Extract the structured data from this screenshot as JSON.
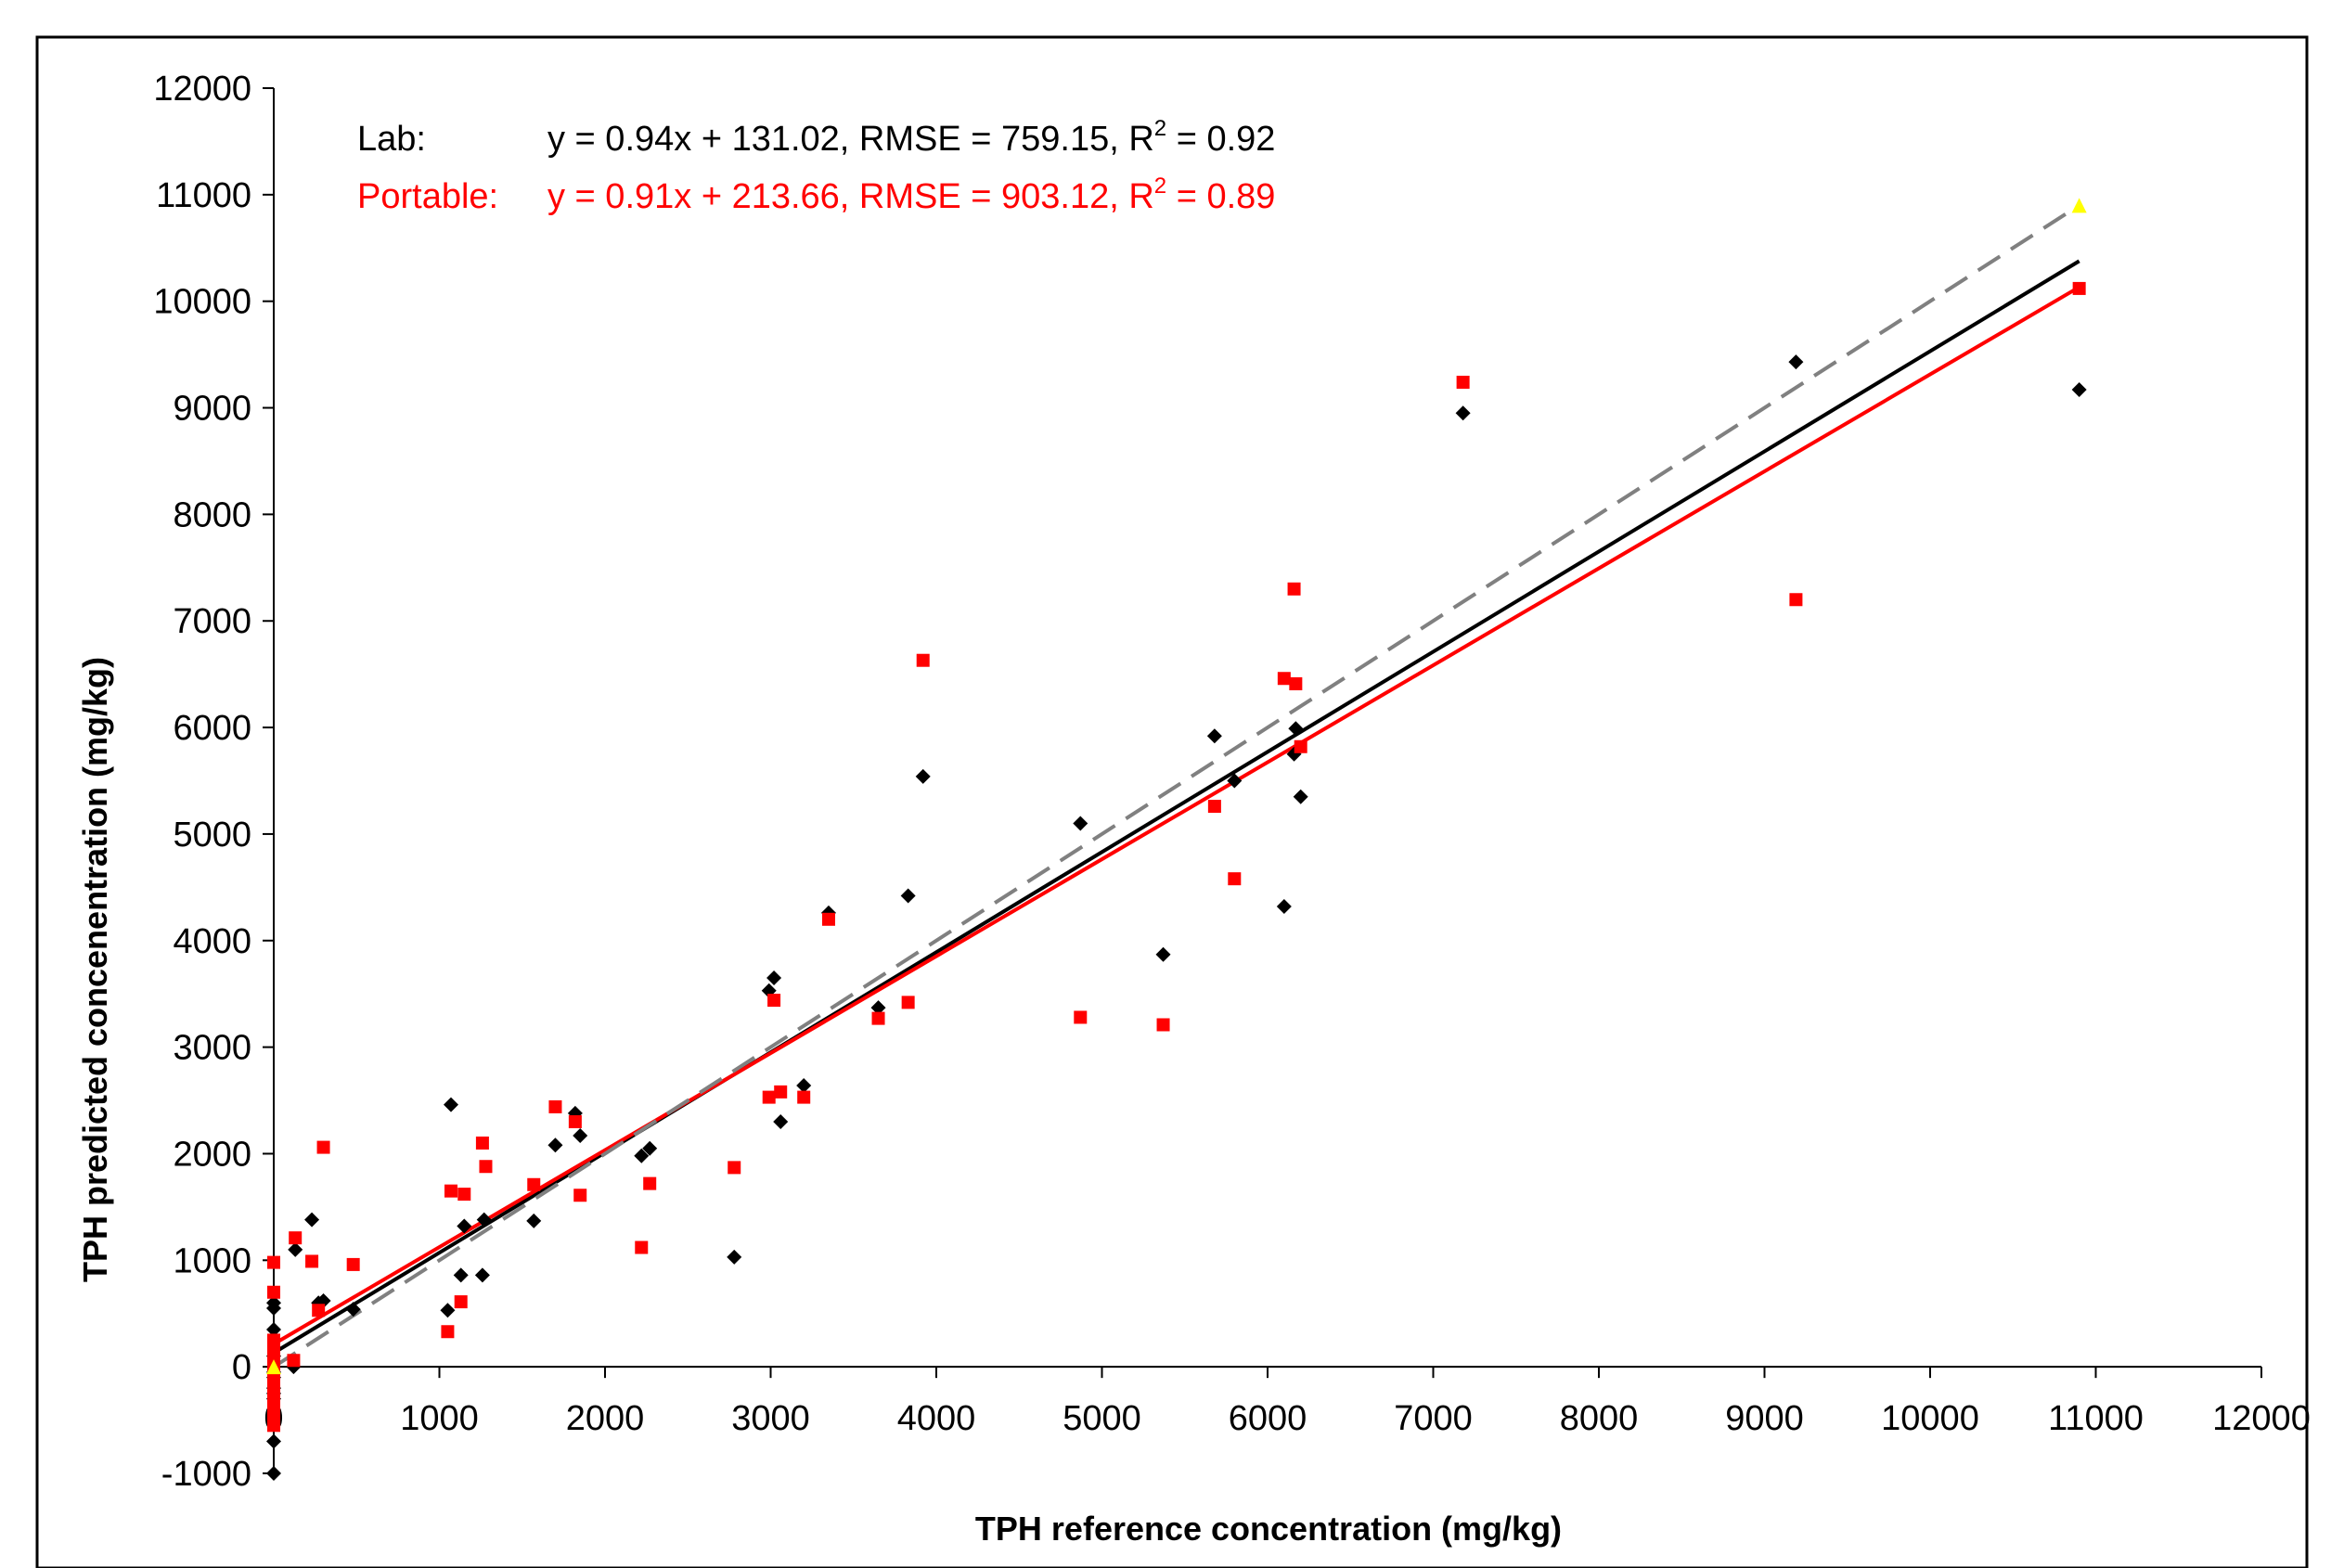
{
  "chart_data": {
    "type": "scatter",
    "title": "",
    "xlabel": "TPH reference concentration (mg/kg)",
    "ylabel": "TPH predicted concenentration (mg/kg)",
    "xlim": [
      0,
      12000
    ],
    "ylim": [
      -1000,
      12000
    ],
    "x_ticks": [
      "0",
      "1000",
      "2000",
      "3000",
      "4000",
      "5000",
      "6000",
      "7000",
      "8000",
      "9000",
      "10000",
      "11000",
      "12000"
    ],
    "y_ticks": [
      "-1000",
      "0",
      "1000",
      "2000",
      "3000",
      "4000",
      "5000",
      "6000",
      "7000",
      "8000",
      "9000",
      "10000",
      "11000",
      "12000"
    ],
    "grid": false,
    "annotations": {
      "lab_label": "Lab:",
      "lab_eq_main": "y = 0.94x + 131.02, RMSE = 759.15, R",
      "lab_eq_sup": "2",
      "lab_eq_tail": " = 0.92",
      "portable_label": "Portable:",
      "portable_eq_main": "y = 0.91x + 213.66, RMSE = 903.12, R",
      "portable_eq_sup": "2",
      "portable_eq_tail": " = 0.89"
    },
    "series": [
      {
        "marker": "diamond",
        "color": "#000000",
        "points": [
          [
            0,
            -1000
          ],
          [
            0,
            -700
          ],
          [
            0,
            -500
          ],
          [
            0,
            -400
          ],
          [
            0,
            -300
          ],
          [
            0,
            -250
          ],
          [
            0,
            -200
          ],
          [
            0,
            -100
          ],
          [
            0,
            -50
          ],
          [
            0,
            0
          ],
          [
            0,
            100
          ],
          [
            0,
            350
          ],
          [
            0,
            550
          ],
          [
            0,
            600
          ],
          [
            120,
            0
          ],
          [
            130,
            1100
          ],
          [
            230,
            1380
          ],
          [
            270,
            600
          ],
          [
            300,
            620
          ],
          [
            480,
            540
          ],
          [
            1050,
            530
          ],
          [
            1070,
            2460
          ],
          [
            1130,
            860
          ],
          [
            1150,
            1320
          ],
          [
            1260,
            860
          ],
          [
            1270,
            1380
          ],
          [
            1570,
            1370
          ],
          [
            1700,
            2080
          ],
          [
            1820,
            2380
          ],
          [
            1850,
            2170
          ],
          [
            2220,
            1980
          ],
          [
            2270,
            2050
          ],
          [
            2780,
            1030
          ],
          [
            2990,
            3530
          ],
          [
            3020,
            3650
          ],
          [
            3060,
            2300
          ],
          [
            3200,
            2640
          ],
          [
            3350,
            4260
          ],
          [
            3650,
            3370
          ],
          [
            3830,
            4420
          ],
          [
            3920,
            5540
          ],
          [
            4870,
            5100
          ],
          [
            5370,
            3870
          ],
          [
            5680,
            5920
          ],
          [
            5800,
            5500
          ],
          [
            6100,
            4320
          ],
          [
            6160,
            5750
          ],
          [
            6170,
            5990
          ],
          [
            6200,
            5350
          ],
          [
            7180,
            8950
          ],
          [
            9190,
            9430
          ],
          [
            10900,
            9170
          ]
        ]
      },
      {
        "marker": "square",
        "color": "#ff0000",
        "points": [
          [
            0,
            -550
          ],
          [
            0,
            -500
          ],
          [
            0,
            -400
          ],
          [
            0,
            -300
          ],
          [
            0,
            -200
          ],
          [
            0,
            -100
          ],
          [
            0,
            0
          ],
          [
            0,
            100
          ],
          [
            0,
            200
          ],
          [
            0,
            250
          ],
          [
            0,
            700
          ],
          [
            0,
            980
          ],
          [
            120,
            60
          ],
          [
            130,
            1210
          ],
          [
            230,
            990
          ],
          [
            270,
            530
          ],
          [
            300,
            2060
          ],
          [
            480,
            960
          ],
          [
            1050,
            330
          ],
          [
            1070,
            1650
          ],
          [
            1130,
            610
          ],
          [
            1150,
            1620
          ],
          [
            1260,
            2100
          ],
          [
            1280,
            1880
          ],
          [
            1570,
            1710
          ],
          [
            1700,
            2440
          ],
          [
            1820,
            2300
          ],
          [
            1850,
            1610
          ],
          [
            2220,
            1120
          ],
          [
            2270,
            1720
          ],
          [
            2780,
            1870
          ],
          [
            2990,
            2530
          ],
          [
            3020,
            3440
          ],
          [
            3060,
            2580
          ],
          [
            3200,
            2530
          ],
          [
            3350,
            4200
          ],
          [
            3650,
            3270
          ],
          [
            3830,
            3420
          ],
          [
            3920,
            6630
          ],
          [
            4870,
            3280
          ],
          [
            5370,
            3210
          ],
          [
            5680,
            5260
          ],
          [
            5800,
            4580
          ],
          [
            6100,
            6460
          ],
          [
            6160,
            7300
          ],
          [
            6170,
            6410
          ],
          [
            6200,
            5820
          ],
          [
            7180,
            9240
          ],
          [
            9190,
            7200
          ],
          [
            10900,
            10120
          ]
        ]
      },
      {
        "marker": "triangle",
        "color": "#ffff00",
        "points": [
          [
            0,
            0
          ],
          [
            10900,
            10900
          ]
        ]
      }
    ],
    "lines": [
      {
        "style": "solid",
        "color": "#000000",
        "slope": 0.94,
        "intercept": 131.02,
        "x_range": [
          0,
          10900
        ]
      },
      {
        "style": "solid",
        "color": "#ff0000",
        "slope": 0.91,
        "intercept": 213.66,
        "x_range": [
          0,
          10900
        ]
      },
      {
        "style": "dashed",
        "color": "#808080",
        "slope": 1.0,
        "intercept": 0,
        "x_range": [
          0,
          10900
        ]
      }
    ]
  }
}
